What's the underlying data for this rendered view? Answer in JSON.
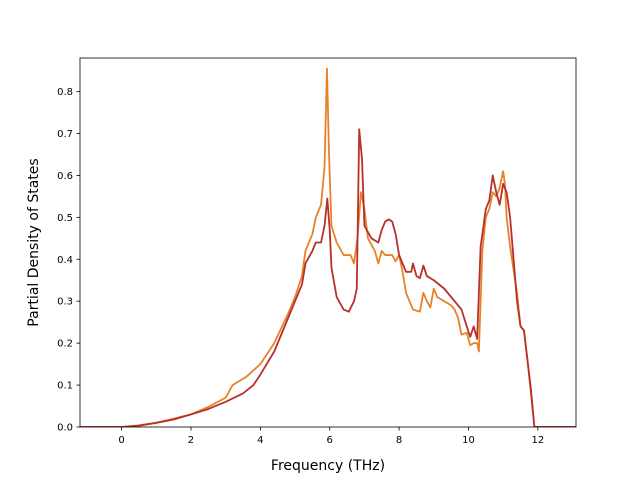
{
  "chart_data": {
    "type": "line",
    "xlabel": "Frequency (THz)",
    "ylabel": "Partial Density of States",
    "xlim": [
      -1.2,
      13.1
    ],
    "ylim": [
      0,
      0.88
    ],
    "x_ticks": [
      0,
      2,
      4,
      6,
      8,
      10,
      12
    ],
    "y_ticks": [
      0.0,
      0.1,
      0.2,
      0.3,
      0.4,
      0.5,
      0.6,
      0.7,
      0.8
    ],
    "x_tick_labels": [
      "0",
      "2",
      "4",
      "6",
      "8",
      "10",
      "12"
    ],
    "y_tick_labels": [
      "0.0",
      "0.1",
      "0.2",
      "0.3",
      "0.4",
      "0.5",
      "0.6",
      "0.7",
      "0.8"
    ],
    "grid": false,
    "legend": "none",
    "series": [
      {
        "color": "#e8822a",
        "points": [
          [
            -1.2,
            0.0
          ],
          [
            0.0,
            0.0
          ],
          [
            0.5,
            0.004
          ],
          [
            1.0,
            0.01
          ],
          [
            1.5,
            0.02
          ],
          [
            2.0,
            0.03
          ],
          [
            2.5,
            0.048
          ],
          [
            3.0,
            0.07
          ],
          [
            3.2,
            0.1
          ],
          [
            3.6,
            0.12
          ],
          [
            4.0,
            0.15
          ],
          [
            4.4,
            0.2
          ],
          [
            4.8,
            0.27
          ],
          [
            5.0,
            0.31
          ],
          [
            5.2,
            0.36
          ],
          [
            5.3,
            0.42
          ],
          [
            5.5,
            0.46
          ],
          [
            5.6,
            0.5
          ],
          [
            5.75,
            0.53
          ],
          [
            5.85,
            0.62
          ],
          [
            5.92,
            0.855
          ],
          [
            5.98,
            0.65
          ],
          [
            6.05,
            0.48
          ],
          [
            6.2,
            0.44
          ],
          [
            6.4,
            0.41
          ],
          [
            6.6,
            0.41
          ],
          [
            6.7,
            0.39
          ],
          [
            6.8,
            0.45
          ],
          [
            6.9,
            0.56
          ],
          [
            7.0,
            0.52
          ],
          [
            7.1,
            0.45
          ],
          [
            7.3,
            0.42
          ],
          [
            7.4,
            0.39
          ],
          [
            7.5,
            0.42
          ],
          [
            7.6,
            0.41
          ],
          [
            7.8,
            0.41
          ],
          [
            7.9,
            0.395
          ],
          [
            8.0,
            0.41
          ],
          [
            8.1,
            0.37
          ],
          [
            8.2,
            0.32
          ],
          [
            8.4,
            0.28
          ],
          [
            8.6,
            0.275
          ],
          [
            8.7,
            0.32
          ],
          [
            8.8,
            0.3
          ],
          [
            8.9,
            0.285
          ],
          [
            9.0,
            0.33
          ],
          [
            9.1,
            0.31
          ],
          [
            9.3,
            0.3
          ],
          [
            9.5,
            0.29
          ],
          [
            9.6,
            0.28
          ],
          [
            9.7,
            0.26
          ],
          [
            9.8,
            0.22
          ],
          [
            9.95,
            0.225
          ],
          [
            10.05,
            0.195
          ],
          [
            10.15,
            0.2
          ],
          [
            10.25,
            0.2
          ],
          [
            10.3,
            0.18
          ],
          [
            10.4,
            0.42
          ],
          [
            10.5,
            0.5
          ],
          [
            10.6,
            0.52
          ],
          [
            10.7,
            0.56
          ],
          [
            10.8,
            0.55
          ],
          [
            10.9,
            0.57
          ],
          [
            11.0,
            0.61
          ],
          [
            11.05,
            0.58
          ],
          [
            11.1,
            0.5
          ],
          [
            11.2,
            0.43
          ],
          [
            11.4,
            0.32
          ],
          [
            11.5,
            0.24
          ],
          [
            11.6,
            0.23
          ],
          [
            11.7,
            0.16
          ],
          [
            11.8,
            0.08
          ],
          [
            11.9,
            0.0
          ],
          [
            13.1,
            0.0
          ]
        ]
      },
      {
        "color": "#b8302a",
        "points": [
          [
            -1.2,
            0.0
          ],
          [
            0.0,
            0.0
          ],
          [
            0.5,
            0.003
          ],
          [
            1.0,
            0.01
          ],
          [
            1.5,
            0.018
          ],
          [
            2.0,
            0.03
          ],
          [
            2.5,
            0.043
          ],
          [
            3.0,
            0.06
          ],
          [
            3.5,
            0.08
          ],
          [
            3.8,
            0.1
          ],
          [
            4.0,
            0.125
          ],
          [
            4.4,
            0.18
          ],
          [
            4.8,
            0.26
          ],
          [
            5.0,
            0.3
          ],
          [
            5.2,
            0.34
          ],
          [
            5.3,
            0.39
          ],
          [
            5.5,
            0.42
          ],
          [
            5.6,
            0.44
          ],
          [
            5.75,
            0.44
          ],
          [
            5.85,
            0.48
          ],
          [
            5.93,
            0.545
          ],
          [
            6.0,
            0.47
          ],
          [
            6.05,
            0.38
          ],
          [
            6.2,
            0.31
          ],
          [
            6.4,
            0.28
          ],
          [
            6.55,
            0.275
          ],
          [
            6.7,
            0.3
          ],
          [
            6.78,
            0.33
          ],
          [
            6.85,
            0.71
          ],
          [
            6.93,
            0.64
          ],
          [
            7.0,
            0.48
          ],
          [
            7.2,
            0.45
          ],
          [
            7.4,
            0.44
          ],
          [
            7.5,
            0.47
          ],
          [
            7.6,
            0.49
          ],
          [
            7.7,
            0.495
          ],
          [
            7.8,
            0.49
          ],
          [
            7.9,
            0.46
          ],
          [
            8.0,
            0.41
          ],
          [
            8.1,
            0.39
          ],
          [
            8.2,
            0.37
          ],
          [
            8.35,
            0.37
          ],
          [
            8.4,
            0.39
          ],
          [
            8.5,
            0.36
          ],
          [
            8.6,
            0.355
          ],
          [
            8.7,
            0.385
          ],
          [
            8.8,
            0.36
          ],
          [
            9.0,
            0.35
          ],
          [
            9.3,
            0.33
          ],
          [
            9.6,
            0.3
          ],
          [
            9.8,
            0.28
          ],
          [
            9.95,
            0.24
          ],
          [
            10.05,
            0.215
          ],
          [
            10.15,
            0.24
          ],
          [
            10.25,
            0.21
          ],
          [
            10.35,
            0.43
          ],
          [
            10.5,
            0.52
          ],
          [
            10.6,
            0.54
          ],
          [
            10.7,
            0.6
          ],
          [
            10.8,
            0.56
          ],
          [
            10.9,
            0.53
          ],
          [
            11.0,
            0.58
          ],
          [
            11.1,
            0.56
          ],
          [
            11.2,
            0.5
          ],
          [
            11.3,
            0.4
          ],
          [
            11.4,
            0.3
          ],
          [
            11.5,
            0.24
          ],
          [
            11.6,
            0.23
          ],
          [
            11.7,
            0.16
          ],
          [
            11.8,
            0.09
          ],
          [
            11.9,
            0.0
          ],
          [
            13.1,
            0.0
          ]
        ]
      }
    ]
  }
}
